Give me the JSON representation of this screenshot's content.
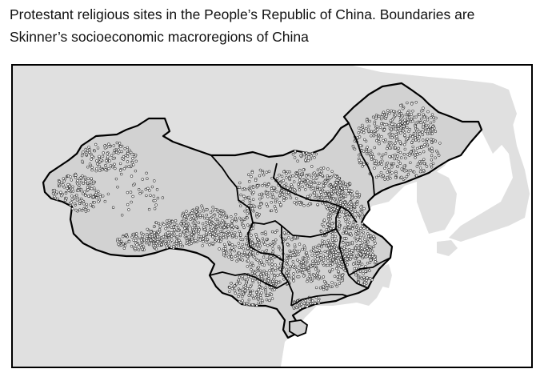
{
  "caption": {
    "line1": "Protestant religious sites in the People’s Republic of China. Boundaries are",
    "line2": "Skinner’s socioeconomic macroregions of China"
  },
  "map": {
    "colors": {
      "background_land": "#e0e0e0",
      "china_fill": "#d2d2d2",
      "boundary": "#000000",
      "site_marker_fill": "#ffffff",
      "site_marker_stroke": "#333333"
    },
    "site_marker": "small hollow circle",
    "macroregion_count": 9
  }
}
